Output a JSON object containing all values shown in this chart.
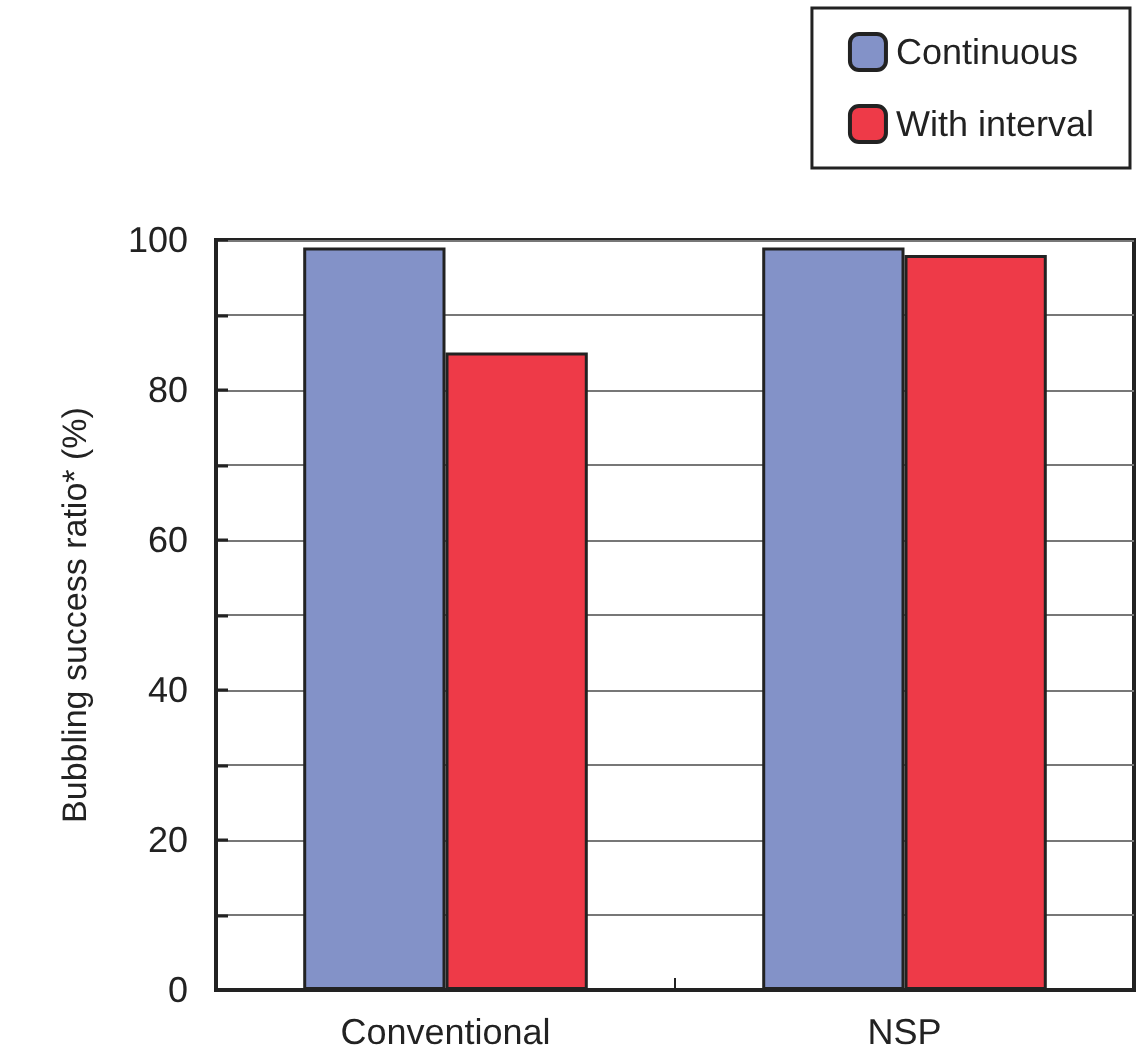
{
  "chart_data": {
    "type": "bar",
    "ylabel": "Bubbling success ratio* (%)",
    "categories": [
      "Conventional",
      "NSP"
    ],
    "series": [
      {
        "name": "Continuous",
        "color": "#8392c8",
        "values": [
          99,
          99
        ]
      },
      {
        "name": "With interval",
        "color": "#ee3a48",
        "values": [
          85,
          98
        ]
      }
    ],
    "ylim": [
      0,
      100
    ],
    "yticks": [
      0,
      {
        "value": 10,
        "label": null
      },
      20,
      {
        "value": 30,
        "label": null
      },
      40,
      {
        "value": 50,
        "label": null
      },
      60,
      {
        "value": 70,
        "label": null
      },
      80,
      {
        "value": 90,
        "label": null
      },
      100
    ],
    "grid": "y",
    "legend": "top right"
  }
}
